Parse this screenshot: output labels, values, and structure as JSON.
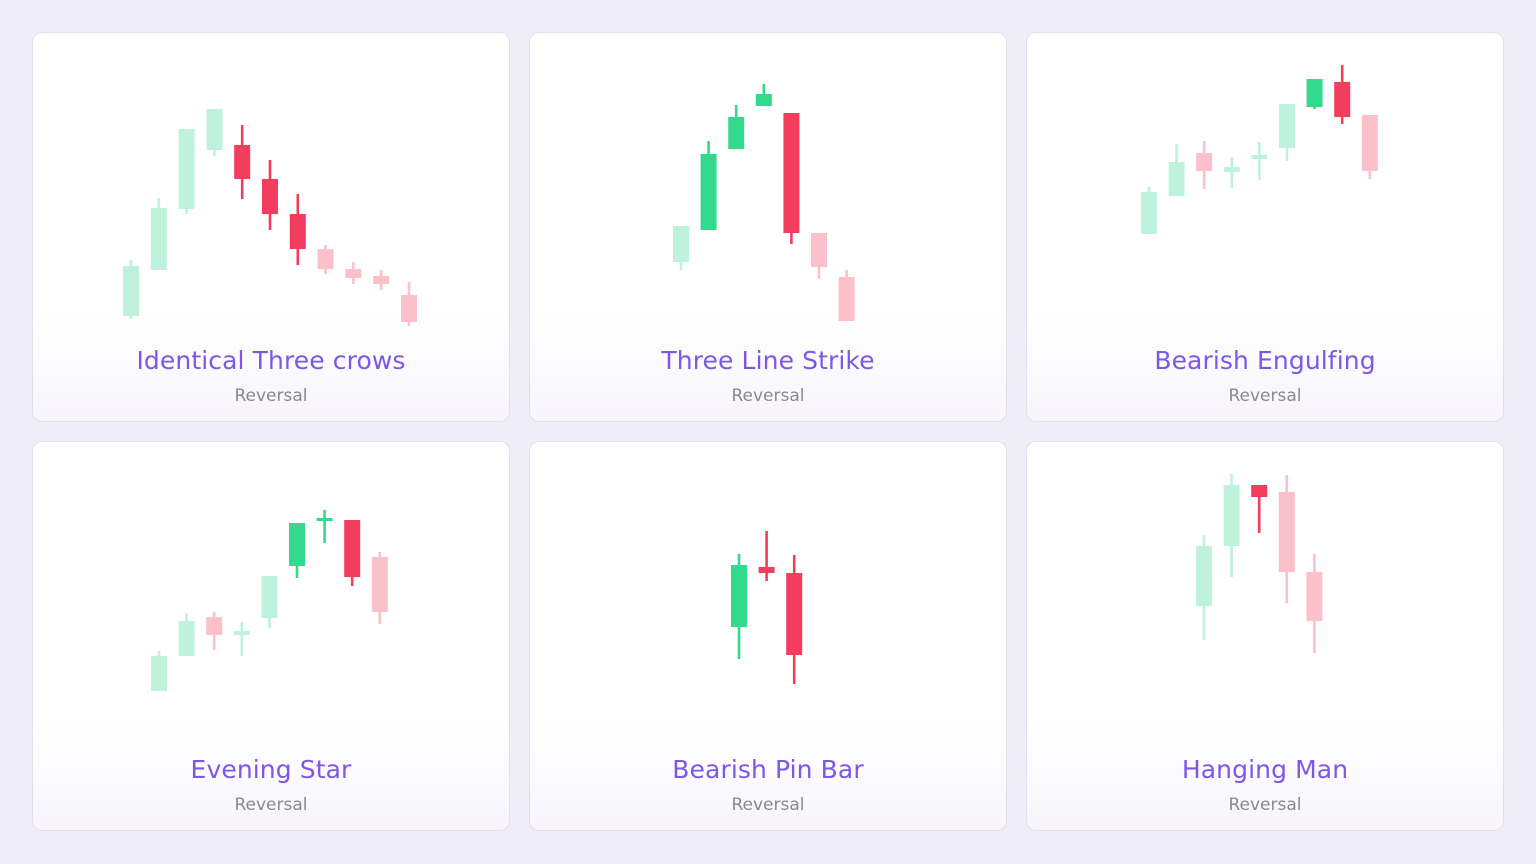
{
  "colors": {
    "bull": "#33d98c",
    "bull_faded": "#bff2dc",
    "bear": "#f23d5f",
    "bear_faded": "#fcc0ca",
    "title": "#7e57e6",
    "subtitle": "#8a8794"
  },
  "cards": [
    {
      "title": "Identical Three crows",
      "category": "Reversal",
      "candles": [
        {
          "open": 1.6,
          "close": 11.6,
          "high": 12.8,
          "low": 1.0,
          "dir": "up",
          "hl": false
        },
        {
          "open": 10.8,
          "close": 23.2,
          "high": 25.2,
          "low": 10.8,
          "dir": "up",
          "hl": false
        },
        {
          "open": 23.0,
          "close": 39.0,
          "high": 39.0,
          "low": 22.0,
          "dir": "up",
          "hl": false
        },
        {
          "open": 34.8,
          "close": 43.0,
          "high": 43.0,
          "low": 33.6,
          "dir": "up",
          "hl": false
        },
        {
          "open": 35.8,
          "close": 29.0,
          "high": 39.8,
          "low": 25.0,
          "dir": "down",
          "hl": true
        },
        {
          "open": 29.0,
          "close": 22.0,
          "high": 32.8,
          "low": 18.8,
          "dir": "down",
          "hl": true
        },
        {
          "open": 22.0,
          "close": 15.0,
          "high": 26.0,
          "low": 11.8,
          "dir": "down",
          "hl": true
        },
        {
          "open": 15.0,
          "close": 11.0,
          "high": 15.8,
          "low": 10.0,
          "dir": "down",
          "hl": false
        },
        {
          "open": 11.0,
          "close": 9.2,
          "high": 12.4,
          "low": 8.0,
          "dir": "down",
          "hl": false
        },
        {
          "open": 9.6,
          "close": 8.0,
          "high": 10.8,
          "low": 6.8,
          "dir": "down",
          "hl": false
        },
        {
          "open": 5.8,
          "close": 0.4,
          "high": 8.4,
          "low": -0.4,
          "dir": "down",
          "hl": false
        }
      ]
    },
    {
      "title": "Three Line Strike",
      "category": "Reversal",
      "candles": [
        {
          "open": 12.0,
          "close": 19.2,
          "high": 19.2,
          "low": 10.4,
          "dir": "up",
          "hl": false
        },
        {
          "open": 18.4,
          "close": 33.6,
          "high": 36.2,
          "low": 18.4,
          "dir": "up",
          "hl": true
        },
        {
          "open": 34.6,
          "close": 41.0,
          "high": 43.4,
          "low": 34.6,
          "dir": "up",
          "hl": true
        },
        {
          "open": 43.2,
          "close": 45.6,
          "high": 47.6,
          "low": 43.2,
          "dir": "up",
          "hl": true
        },
        {
          "open": 41.8,
          "close": 17.8,
          "high": 41.8,
          "low": 15.6,
          "dir": "down",
          "hl": true
        },
        {
          "open": 17.8,
          "close": 11.0,
          "high": 17.8,
          "low": 8.6,
          "dir": "down",
          "hl": false
        },
        {
          "open": 9.0,
          "close": 0.2,
          "high": 10.4,
          "low": 0.2,
          "dir": "down",
          "hl": false
        }
      ]
    },
    {
      "title": "Bearish Engulfing",
      "category": "Reversal",
      "candles": [
        {
          "open": 8.8,
          "close": 17.2,
          "high": 18.2,
          "low": 8.8,
          "dir": "up",
          "hl": false
        },
        {
          "open": 16.4,
          "close": 23.2,
          "high": 26.8,
          "low": 16.4,
          "dir": "up",
          "hl": false
        },
        {
          "open": 25.0,
          "close": 21.4,
          "high": 27.4,
          "low": 17.8,
          "dir": "down",
          "hl": false
        },
        {
          "open": 21.2,
          "close": 22.2,
          "high": 24.2,
          "low": 18.0,
          "dir": "up",
          "hl": false
        },
        {
          "open": 23.8,
          "close": 24.6,
          "high": 27.2,
          "low": 19.6,
          "dir": "up",
          "hl": false
        },
        {
          "open": 26.0,
          "close": 34.8,
          "high": 34.8,
          "low": 23.4,
          "dir": "up",
          "hl": false
        },
        {
          "open": 34.2,
          "close": 39.8,
          "high": 39.8,
          "low": 33.8,
          "dir": "up",
          "hl": true
        },
        {
          "open": 39.2,
          "close": 32.2,
          "high": 42.6,
          "low": 30.8,
          "dir": "down",
          "hl": true
        },
        {
          "open": 32.6,
          "close": 21.4,
          "high": 32.6,
          "low": 19.8,
          "dir": "down",
          "hl": false
        }
      ]
    },
    {
      "title": "Evening Star",
      "category": "Reversal",
      "candles": [
        {
          "open": 0.0,
          "close": 7.0,
          "high": 8.0,
          "low": 0.0,
          "dir": "up",
          "hl": false
        },
        {
          "open": 7.0,
          "close": 14.0,
          "high": 15.6,
          "low": 7.0,
          "dir": "up",
          "hl": false
        },
        {
          "open": 14.8,
          "close": 11.2,
          "high": 15.8,
          "low": 8.2,
          "dir": "down",
          "hl": false
        },
        {
          "open": 11.2,
          "close": 12.0,
          "high": 13.8,
          "low": 7.0,
          "dir": "up",
          "hl": false
        },
        {
          "open": 14.6,
          "close": 23.0,
          "high": 23.0,
          "low": 12.6,
          "dir": "up",
          "hl": false
        },
        {
          "open": 25.0,
          "close": 33.6,
          "high": 33.6,
          "low": 22.6,
          "dir": "up",
          "hl": true
        },
        {
          "open": 34.0,
          "close": 34.6,
          "high": 36.2,
          "low": 29.6,
          "dir": "up",
          "hl": true
        },
        {
          "open": 34.2,
          "close": 22.8,
          "high": 34.2,
          "low": 21.0,
          "dir": "down",
          "hl": true
        },
        {
          "open": 26.8,
          "close": 15.8,
          "high": 27.8,
          "low": 13.4,
          "dir": "down",
          "hl": false
        }
      ]
    },
    {
      "title": "Bearish Pin Bar",
      "category": "Reversal",
      "candles": [
        {
          "open": 11.4,
          "close": 23.8,
          "high": 26.0,
          "low": 5.0,
          "dir": "up",
          "hl": true
        },
        {
          "open": 23.4,
          "close": 22.2,
          "high": 30.6,
          "low": 20.6,
          "dir": "down",
          "hl": true
        },
        {
          "open": 22.2,
          "close": 5.8,
          "high": 25.8,
          "low": 0.0,
          "dir": "down",
          "hl": true
        }
      ]
    },
    {
      "title": "Hanging Man",
      "category": "Reversal",
      "candles": [
        {
          "open": 14.4,
          "close": 26.4,
          "high": 28.6,
          "low": 7.6,
          "dir": "up",
          "hl": false
        },
        {
          "open": 26.4,
          "close": 38.6,
          "high": 40.8,
          "low": 20.2,
          "dir": "up",
          "hl": false
        },
        {
          "open": 38.6,
          "close": 36.2,
          "high": 38.6,
          "low": 29.0,
          "dir": "down",
          "hl": true
        },
        {
          "open": 37.2,
          "close": 21.2,
          "high": 40.6,
          "low": 15.0,
          "dir": "down",
          "hl": false
        },
        {
          "open": 21.2,
          "close": 11.4,
          "high": 24.8,
          "low": 5.0,
          "dir": "down",
          "hl": false
        }
      ]
    }
  ]
}
